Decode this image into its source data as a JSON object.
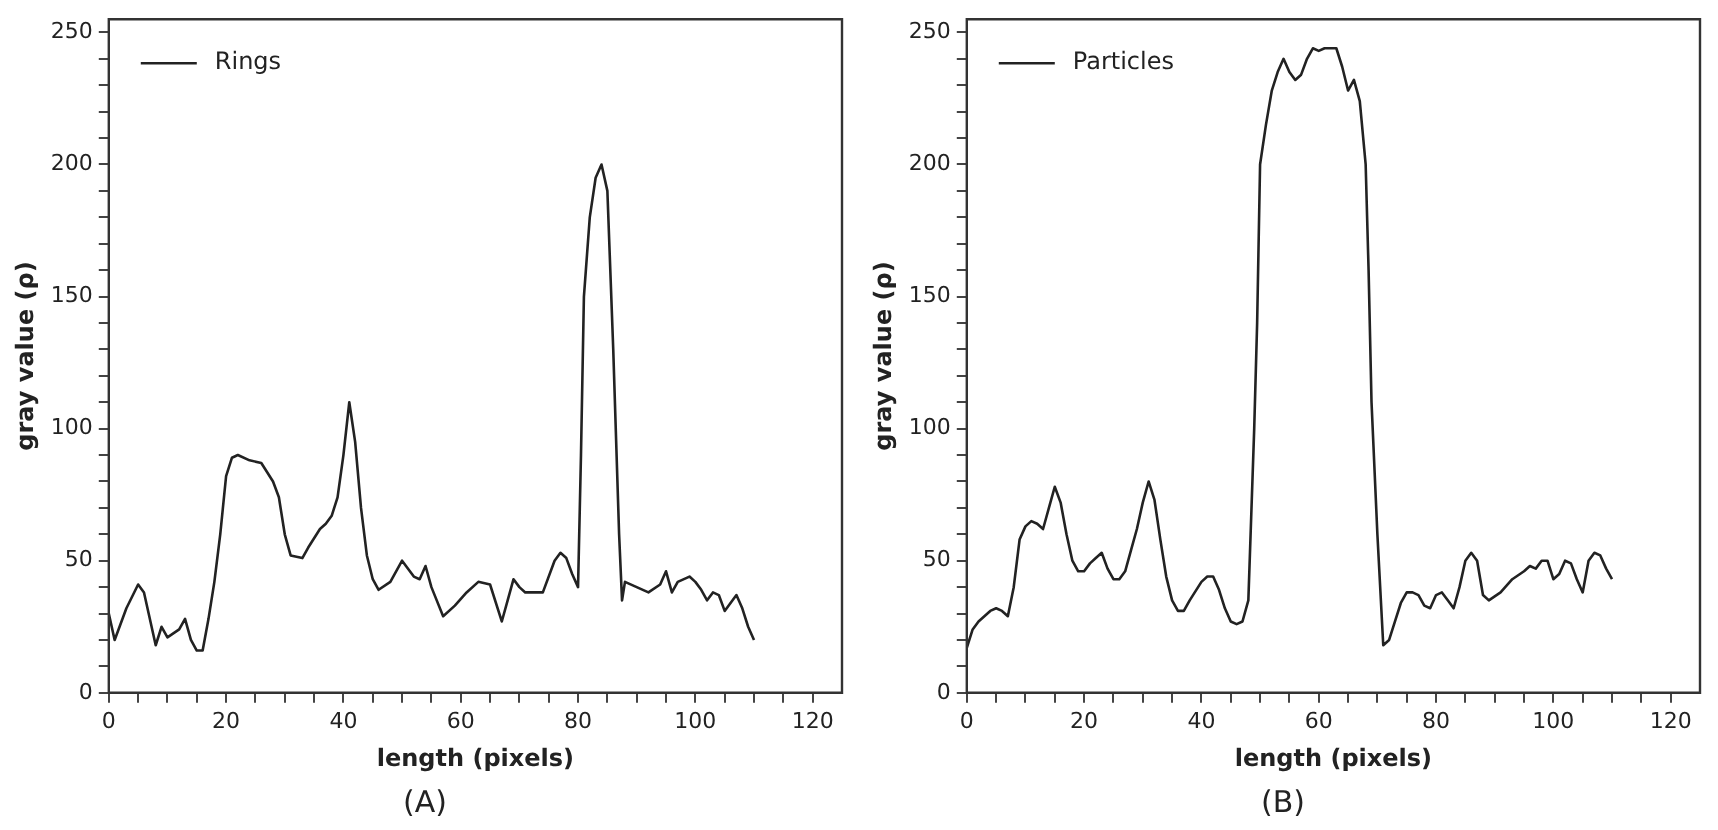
{
  "chart_data": [
    {
      "type": "line",
      "title": "(A)",
      "xlabel": "length (pixels)",
      "ylabel": "gray value (ρ)",
      "legend": "top left",
      "grid": false,
      "marker": "none",
      "line_style": "solid",
      "xlim": [
        0,
        125
      ],
      "ylim": [
        0,
        255
      ],
      "xticks": [
        0,
        {
          "value": 5,
          "label": null
        },
        {
          "value": 10,
          "label": null
        },
        {
          "value": 15,
          "label": null
        },
        20,
        {
          "value": 25,
          "label": null
        },
        {
          "value": 30,
          "label": null
        },
        {
          "value": 35,
          "label": null
        },
        40,
        {
          "value": 45,
          "label": null
        },
        {
          "value": 50,
          "label": null
        },
        {
          "value": 55,
          "label": null
        },
        60,
        {
          "value": 65,
          "label": null
        },
        {
          "value": 70,
          "label": null
        },
        {
          "value": 75,
          "label": null
        },
        80,
        {
          "value": 85,
          "label": null
        },
        {
          "value": 90,
          "label": null
        },
        {
          "value": 95,
          "label": null
        },
        100,
        {
          "value": 105,
          "label": null
        },
        {
          "value": 110,
          "label": null
        },
        {
          "value": 115,
          "label": null
        },
        120
      ],
      "yticks": [
        0,
        {
          "value": 10,
          "label": null
        },
        {
          "value": 20,
          "label": null
        },
        {
          "value": 30,
          "label": null
        },
        {
          "value": 40,
          "label": null
        },
        50,
        {
          "value": 60,
          "label": null
        },
        {
          "value": 70,
          "label": null
        },
        {
          "value": 80,
          "label": null
        },
        {
          "value": 90,
          "label": null
        },
        100,
        {
          "value": 110,
          "label": null
        },
        {
          "value": 120,
          "label": null
        },
        {
          "value": 130,
          "label": null
        },
        {
          "value": 140,
          "label": null
        },
        150,
        {
          "value": 160,
          "label": null
        },
        {
          "value": 170,
          "label": null
        },
        {
          "value": 180,
          "label": null
        },
        {
          "value": 190,
          "label": null
        },
        200,
        {
          "value": 210,
          "label": null
        },
        {
          "value": 220,
          "label": null
        },
        {
          "value": 230,
          "label": null
        },
        {
          "value": 240,
          "label": null
        },
        250
      ],
      "x": [
        0,
        1,
        3,
        5,
        6,
        8,
        9,
        10,
        12,
        13,
        14,
        15,
        16,
        17,
        18,
        19,
        20,
        21,
        22,
        24,
        26,
        28,
        29,
        30,
        31,
        33,
        34,
        36,
        37,
        38,
        39,
        40,
        41,
        42,
        43,
        44,
        45,
        46,
        48,
        50,
        52,
        53,
        54,
        55,
        57,
        59,
        61,
        63,
        65,
        67,
        68,
        69,
        70,
        71,
        74,
        76,
        77,
        78,
        79,
        80,
        80.5,
        81,
        82,
        83,
        84,
        85,
        86,
        87,
        87.5,
        88,
        90,
        92,
        94,
        95,
        96,
        97,
        99,
        100,
        101,
        102,
        103,
        104,
        105,
        107,
        108,
        109,
        110
      ],
      "series": [
        {
          "name": "Rings",
          "color": "#222222",
          "values": [
            30,
            20,
            32,
            41,
            38,
            18,
            25,
            21,
            24,
            28,
            20,
            16,
            16,
            28,
            42,
            60,
            82,
            89,
            90,
            88,
            87,
            80,
            74,
            60,
            52,
            51,
            55,
            62,
            64,
            67,
            74,
            90,
            110,
            95,
            70,
            52,
            43,
            39,
            42,
            50,
            44,
            43,
            48,
            40,
            29,
            33,
            38,
            42,
            41,
            27,
            35,
            43,
            40,
            38,
            38,
            50,
            53,
            51,
            45,
            40,
            90,
            150,
            180,
            195,
            200,
            190,
            130,
            60,
            35,
            42,
            40,
            38,
            41,
            46,
            38,
            42,
            44,
            42,
            39,
            35,
            38,
            37,
            31,
            37,
            32,
            25,
            20
          ]
        }
      ]
    },
    {
      "type": "line",
      "title": "(B)",
      "xlabel": "length (pixels)",
      "ylabel": "gray value (ρ)",
      "legend": "top left",
      "grid": false,
      "marker": "none",
      "line_style": "solid",
      "xlim": [
        0,
        125
      ],
      "ylim": [
        0,
        255
      ],
      "xticks": [
        0,
        {
          "value": 5,
          "label": null
        },
        {
          "value": 10,
          "label": null
        },
        {
          "value": 15,
          "label": null
        },
        20,
        {
          "value": 25,
          "label": null
        },
        {
          "value": 30,
          "label": null
        },
        {
          "value": 35,
          "label": null
        },
        40,
        {
          "value": 45,
          "label": null
        },
        {
          "value": 50,
          "label": null
        },
        {
          "value": 55,
          "label": null
        },
        60,
        {
          "value": 65,
          "label": null
        },
        {
          "value": 70,
          "label": null
        },
        {
          "value": 75,
          "label": null
        },
        80,
        {
          "value": 85,
          "label": null
        },
        {
          "value": 90,
          "label": null
        },
        {
          "value": 95,
          "label": null
        },
        100,
        {
          "value": 105,
          "label": null
        },
        {
          "value": 110,
          "label": null
        },
        {
          "value": 115,
          "label": null
        },
        120
      ],
      "yticks": [
        0,
        {
          "value": 10,
          "label": null
        },
        {
          "value": 20,
          "label": null
        },
        {
          "value": 30,
          "label": null
        },
        {
          "value": 40,
          "label": null
        },
        50,
        {
          "value": 60,
          "label": null
        },
        {
          "value": 70,
          "label": null
        },
        {
          "value": 80,
          "label": null
        },
        {
          "value": 90,
          "label": null
        },
        100,
        {
          "value": 110,
          "label": null
        },
        {
          "value": 120,
          "label": null
        },
        {
          "value": 130,
          "label": null
        },
        {
          "value": 140,
          "label": null
        },
        150,
        {
          "value": 160,
          "label": null
        },
        {
          "value": 170,
          "label": null
        },
        {
          "value": 180,
          "label": null
        },
        {
          "value": 190,
          "label": null
        },
        200,
        {
          "value": 210,
          "label": null
        },
        {
          "value": 220,
          "label": null
        },
        {
          "value": 230,
          "label": null
        },
        {
          "value": 240,
          "label": null
        },
        250
      ],
      "x": [
        0,
        1,
        2,
        4,
        5,
        6,
        7,
        8,
        9,
        10,
        11,
        12,
        13,
        14,
        15,
        16,
        17,
        18,
        19,
        20,
        21,
        22,
        23,
        24,
        25,
        26,
        27,
        28,
        29,
        30,
        31,
        32,
        33,
        34,
        35,
        36,
        37,
        38,
        40,
        41,
        42,
        43,
        44,
        45,
        46,
        47,
        48,
        49,
        49.5,
        50,
        51,
        52,
        53,
        54,
        55,
        56,
        57,
        58,
        59,
        60,
        61,
        62,
        63,
        64,
        65,
        66,
        67,
        68,
        68.5,
        69,
        70,
        71,
        72,
        73,
        74,
        75,
        76,
        77,
        78,
        79,
        80,
        81,
        82,
        83,
        84,
        85,
        86,
        87,
        88,
        89,
        91,
        93,
        95,
        96,
        97,
        98,
        99,
        100,
        101,
        102,
        103,
        104,
        105,
        106,
        107,
        108,
        109,
        110
      ],
      "series": [
        {
          "name": "Particles",
          "color": "#222222",
          "values": [
            17,
            24,
            27,
            31,
            32,
            31,
            29,
            40,
            58,
            63,
            65,
            64,
            62,
            70,
            78,
            72,
            60,
            50,
            46,
            46,
            49,
            51,
            53,
            47,
            43,
            43,
            46,
            54,
            62,
            72,
            80,
            73,
            58,
            44,
            35,
            31,
            31,
            35,
            42,
            44,
            44,
            39,
            32,
            27,
            26,
            27,
            35,
            100,
            140,
            200,
            215,
            228,
            235,
            240,
            235,
            232,
            234,
            240,
            244,
            243,
            244,
            244,
            244,
            237,
            228,
            232,
            224,
            200,
            160,
            110,
            60,
            18,
            20,
            27,
            34,
            38,
            38,
            37,
            33,
            32,
            37,
            38,
            35,
            32,
            40,
            50,
            53,
            50,
            37,
            35,
            38,
            43,
            46,
            48,
            47,
            50,
            50,
            43,
            45,
            50,
            49,
            43,
            38,
            50,
            53,
            52,
            47,
            43
          ]
        }
      ]
    }
  ]
}
